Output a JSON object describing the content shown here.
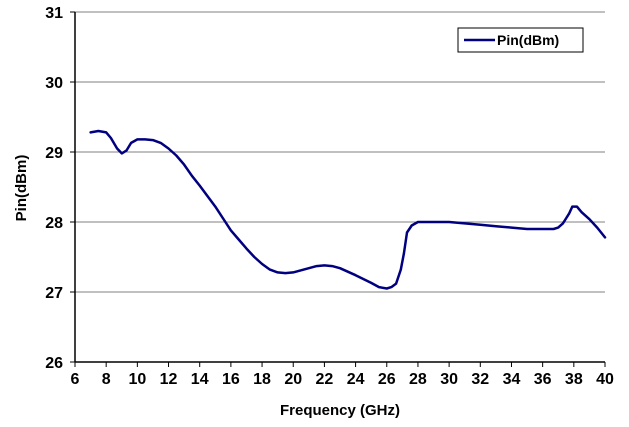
{
  "chart_data": {
    "type": "line",
    "xlabel": "Frequency (GHz)",
    "ylabel": "Pin(dBm)",
    "xlim": [
      6,
      40
    ],
    "ylim": [
      26,
      31
    ],
    "xticks": [
      6,
      8,
      10,
      12,
      14,
      16,
      18,
      20,
      22,
      24,
      26,
      28,
      30,
      32,
      34,
      36,
      38,
      40
    ],
    "yticks": [
      26,
      27,
      28,
      29,
      30,
      31
    ],
    "grid": "horizontal",
    "legend_position": "top-right",
    "colors": {
      "series": "#000080",
      "grid": "#808080",
      "axis": "#000000"
    },
    "series": [
      {
        "name": "Pin(dBm)",
        "x": [
          7.0,
          7.5,
          8.0,
          8.3,
          8.7,
          9.0,
          9.3,
          9.6,
          10.0,
          10.5,
          11.0,
          11.5,
          12.0,
          12.5,
          13.0,
          13.5,
          14.0,
          14.5,
          15.0,
          15.5,
          16.0,
          16.5,
          17.0,
          17.5,
          18.0,
          18.5,
          19.0,
          19.5,
          20.0,
          20.5,
          21.0,
          21.5,
          22.0,
          22.5,
          23.0,
          24.0,
          25.0,
          25.5,
          26.0,
          26.3,
          26.6,
          26.9,
          27.1,
          27.3,
          27.6,
          28.0,
          29.0,
          30.0,
          31.0,
          32.0,
          33.0,
          34.0,
          35.0,
          36.0,
          36.3,
          36.7,
          37.0,
          37.3,
          37.5,
          37.7,
          37.9,
          38.2,
          38.5,
          39.0,
          39.5,
          40.0
        ],
        "y": [
          29.28,
          29.3,
          29.28,
          29.2,
          29.05,
          28.98,
          29.02,
          29.13,
          29.18,
          29.18,
          29.17,
          29.13,
          29.05,
          28.95,
          28.82,
          28.66,
          28.52,
          28.37,
          28.22,
          28.05,
          27.88,
          27.75,
          27.62,
          27.5,
          27.4,
          27.32,
          27.28,
          27.27,
          27.28,
          27.31,
          27.34,
          27.37,
          27.38,
          27.37,
          27.34,
          27.24,
          27.13,
          27.07,
          27.05,
          27.07,
          27.12,
          27.32,
          27.55,
          27.85,
          27.95,
          28.0,
          28.0,
          28.0,
          27.98,
          27.96,
          27.94,
          27.92,
          27.9,
          27.9,
          27.9,
          27.9,
          27.92,
          27.98,
          28.05,
          28.12,
          28.22,
          28.22,
          28.14,
          28.04,
          27.92,
          27.78
        ]
      }
    ]
  }
}
